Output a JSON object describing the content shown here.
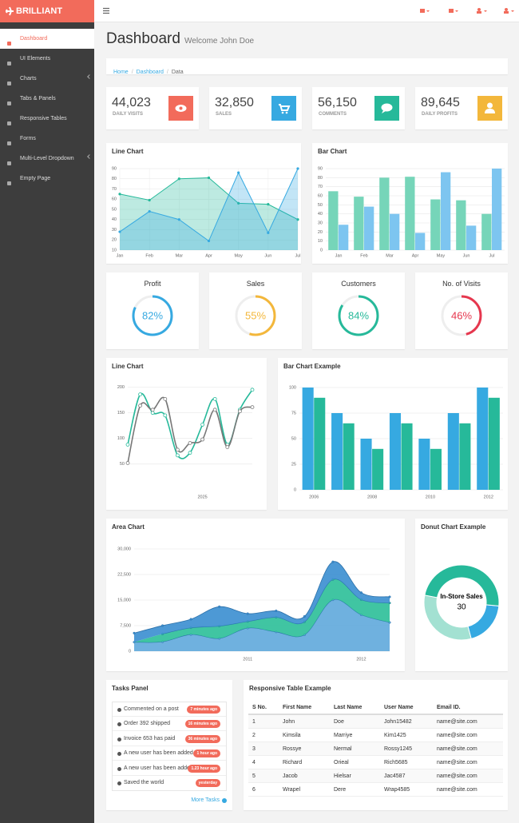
{
  "brand": "BRILLIANT",
  "menu": [
    "Dashboard",
    "UI Elements",
    "Charts",
    "Tabs & Panels",
    "Responsive Tables",
    "Forms",
    "Multi-Level Dropdown",
    "Empty Page"
  ],
  "header": {
    "title": "Dashboard",
    "subtitle": "Welcome John Doe"
  },
  "breadcrumb": [
    "Home",
    "Dashboard",
    "Data"
  ],
  "stats": [
    {
      "value": "44,023",
      "label": "DAILY VISITS",
      "color": "#f26b5b"
    },
    {
      "value": "32,850",
      "label": "SALES",
      "color": "#36a9e1"
    },
    {
      "value": "56,150",
      "label": "COMMENTS",
      "color": "#26b99a"
    },
    {
      "value": "89,645",
      "label": "DAILY PROFITS",
      "color": "#f3b73b"
    }
  ],
  "chart_data": [
    {
      "type": "line",
      "title": "Line Chart",
      "fill": true,
      "categories": [
        "Jan",
        "Feb",
        "Mar",
        "Apr",
        "May",
        "Jun",
        "Jul"
      ],
      "series": [
        {
          "color": "#26b99a",
          "values": [
            65,
            59,
            80,
            81,
            56,
            55,
            40
          ]
        },
        {
          "color": "#36a9e1",
          "values": [
            28,
            48,
            40,
            19,
            86,
            27,
            90
          ]
        }
      ],
      "ylim": [
        10,
        90
      ],
      "yticks": [
        10,
        20,
        30,
        40,
        50,
        60,
        70,
        80,
        90
      ],
      "grid": true
    },
    {
      "type": "bar",
      "title": "Bar Chart",
      "categories": [
        "Jan",
        "Feb",
        "Mar",
        "Apr",
        "May",
        "Jun",
        "Jul"
      ],
      "series": [
        {
          "color": "#76d5b9",
          "values": [
            65,
            59,
            80,
            81,
            56,
            55,
            40
          ]
        },
        {
          "color": "#7dc5f0",
          "values": [
            28,
            48,
            40,
            19,
            86,
            27,
            90
          ]
        }
      ],
      "ylim": [
        0,
        90
      ],
      "yticks": [
        0,
        10,
        20,
        30,
        40,
        50,
        60,
        70,
        80,
        90
      ],
      "grid": true
    },
    {
      "type": "progress",
      "categories": [
        "Profit",
        "Sales",
        "Customers",
        "No. of Visits"
      ],
      "values": [
        82,
        55,
        84,
        46
      ],
      "value_labels": [
        "82%",
        "55%",
        "84%",
        "46%"
      ],
      "colors": [
        "#36a9e1",
        "#f3b73b",
        "#26b99a",
        "#e6374e"
      ]
    },
    {
      "type": "line",
      "title": "Line Chart",
      "curve": "smooth",
      "markers": true,
      "categories": [
        null,
        null,
        null,
        null,
        null,
        null,
        "2025",
        null,
        null,
        null,
        null
      ],
      "series": [
        {
          "color": "#26b99a",
          "values": [
            88,
            186,
            150,
            145,
            67,
            72,
            127,
            177,
            88,
            156,
            195
          ]
        },
        {
          "color": "#777777",
          "values": [
            52,
            164,
            156,
            177,
            78,
            91,
            98,
            156,
            83,
            153,
            161
          ]
        }
      ],
      "ylim": [
        20,
        215
      ],
      "yticks": [
        50,
        100,
        150,
        200
      ],
      "grid": true
    },
    {
      "type": "bar",
      "title": "Bar Chart Example",
      "categories": [
        "2006",
        null,
        "2008",
        null,
        "2010",
        null,
        "2012"
      ],
      "series": [
        {
          "color": "#36a9e1",
          "values": [
            100,
            75,
            50,
            75,
            50,
            75,
            100
          ]
        },
        {
          "color": "#26b99a",
          "values": [
            90,
            65,
            40,
            65,
            40,
            65,
            90
          ]
        }
      ],
      "ylim": [
        0,
        100
      ],
      "yticks": [
        0,
        25,
        50,
        75,
        100
      ],
      "grid": true
    },
    {
      "type": "area",
      "title": "Area Chart",
      "stacked": true,
      "curve": "smooth",
      "x": [
        2010,
        2010.25,
        2010.5,
        2010.75,
        2011,
        2011.25,
        2011.5,
        2011.75,
        2012,
        2012.25
      ],
      "xlim": [
        2010,
        2012.25
      ],
      "xticks": [
        2011,
        2012
      ],
      "series": [
        {
          "color": "#5fa8dc",
          "values": [
            2666,
            2778,
            4912,
            3767,
            6810,
            5670,
            4820,
            15073,
            10687,
            8432
          ]
        },
        {
          "color": "#2bbf98",
          "values": [
            null,
            2294,
            1969,
            3597,
            1914,
            4293,
            3795,
            5967,
            4460,
            5713
          ]
        },
        {
          "color": "#3a8ed0",
          "values": [
            2647,
            2441,
            2501,
            5689,
            2293,
            1881,
            1588,
            5175,
            2028,
            1791
          ]
        }
      ],
      "ylim": [
        0,
        30000
      ],
      "yticks": [
        0,
        {
          "value": 7500,
          "label": "7,500"
        },
        {
          "value": 15000,
          "label": "15,000"
        },
        {
          "value": 22500,
          "label": "22,500"
        },
        {
          "value": 30000,
          "label": "30,000"
        }
      ],
      "grid": true
    },
    {
      "type": "donut",
      "title": "Donut Chart Example",
      "categories": [
        null,
        "In-Store Sales",
        null
      ],
      "values": [
        12,
        30,
        20
      ],
      "colors": [
        "#36a9e1",
        "#26b99a",
        "#a3e1d2"
      ]
    }
  ],
  "tasks": {
    "title": "Tasks Panel",
    "items": [
      {
        "text": "Commented on a post",
        "time": "7 minutes ago"
      },
      {
        "text": "Order 392 shipped",
        "time": "16 minutes ago"
      },
      {
        "text": "Invoice 653 has paid",
        "time": "36 minutes ago"
      },
      {
        "text": "A new user has been added",
        "time": "1 hour ago"
      },
      {
        "text": "A new user has been added",
        "time": "1.23 hour ago"
      },
      {
        "text": "Saved the world",
        "time": "yesterday"
      }
    ],
    "more": "More Tasks"
  },
  "table": {
    "title": "Responsive Table Example",
    "columns": [
      "S No.",
      "First Name",
      "Last Name",
      "User Name",
      "Email ID."
    ],
    "rows": [
      [
        "1",
        "John",
        "Doe",
        "John15482",
        "name@site.com"
      ],
      [
        "2",
        "Kimsila",
        "Marriye",
        "Kim1425",
        "name@site.com"
      ],
      [
        "3",
        "Rossye",
        "Nermal",
        "Rossy1245",
        "name@site.com"
      ],
      [
        "4",
        "Richard",
        "Orieal",
        "Rich5685",
        "name@site.com"
      ],
      [
        "5",
        "Jacob",
        "Hielsar",
        "Jac4587",
        "name@site.com"
      ],
      [
        "6",
        "Wrapel",
        "Dere",
        "Wrap4585",
        "name@site.com"
      ]
    ]
  }
}
